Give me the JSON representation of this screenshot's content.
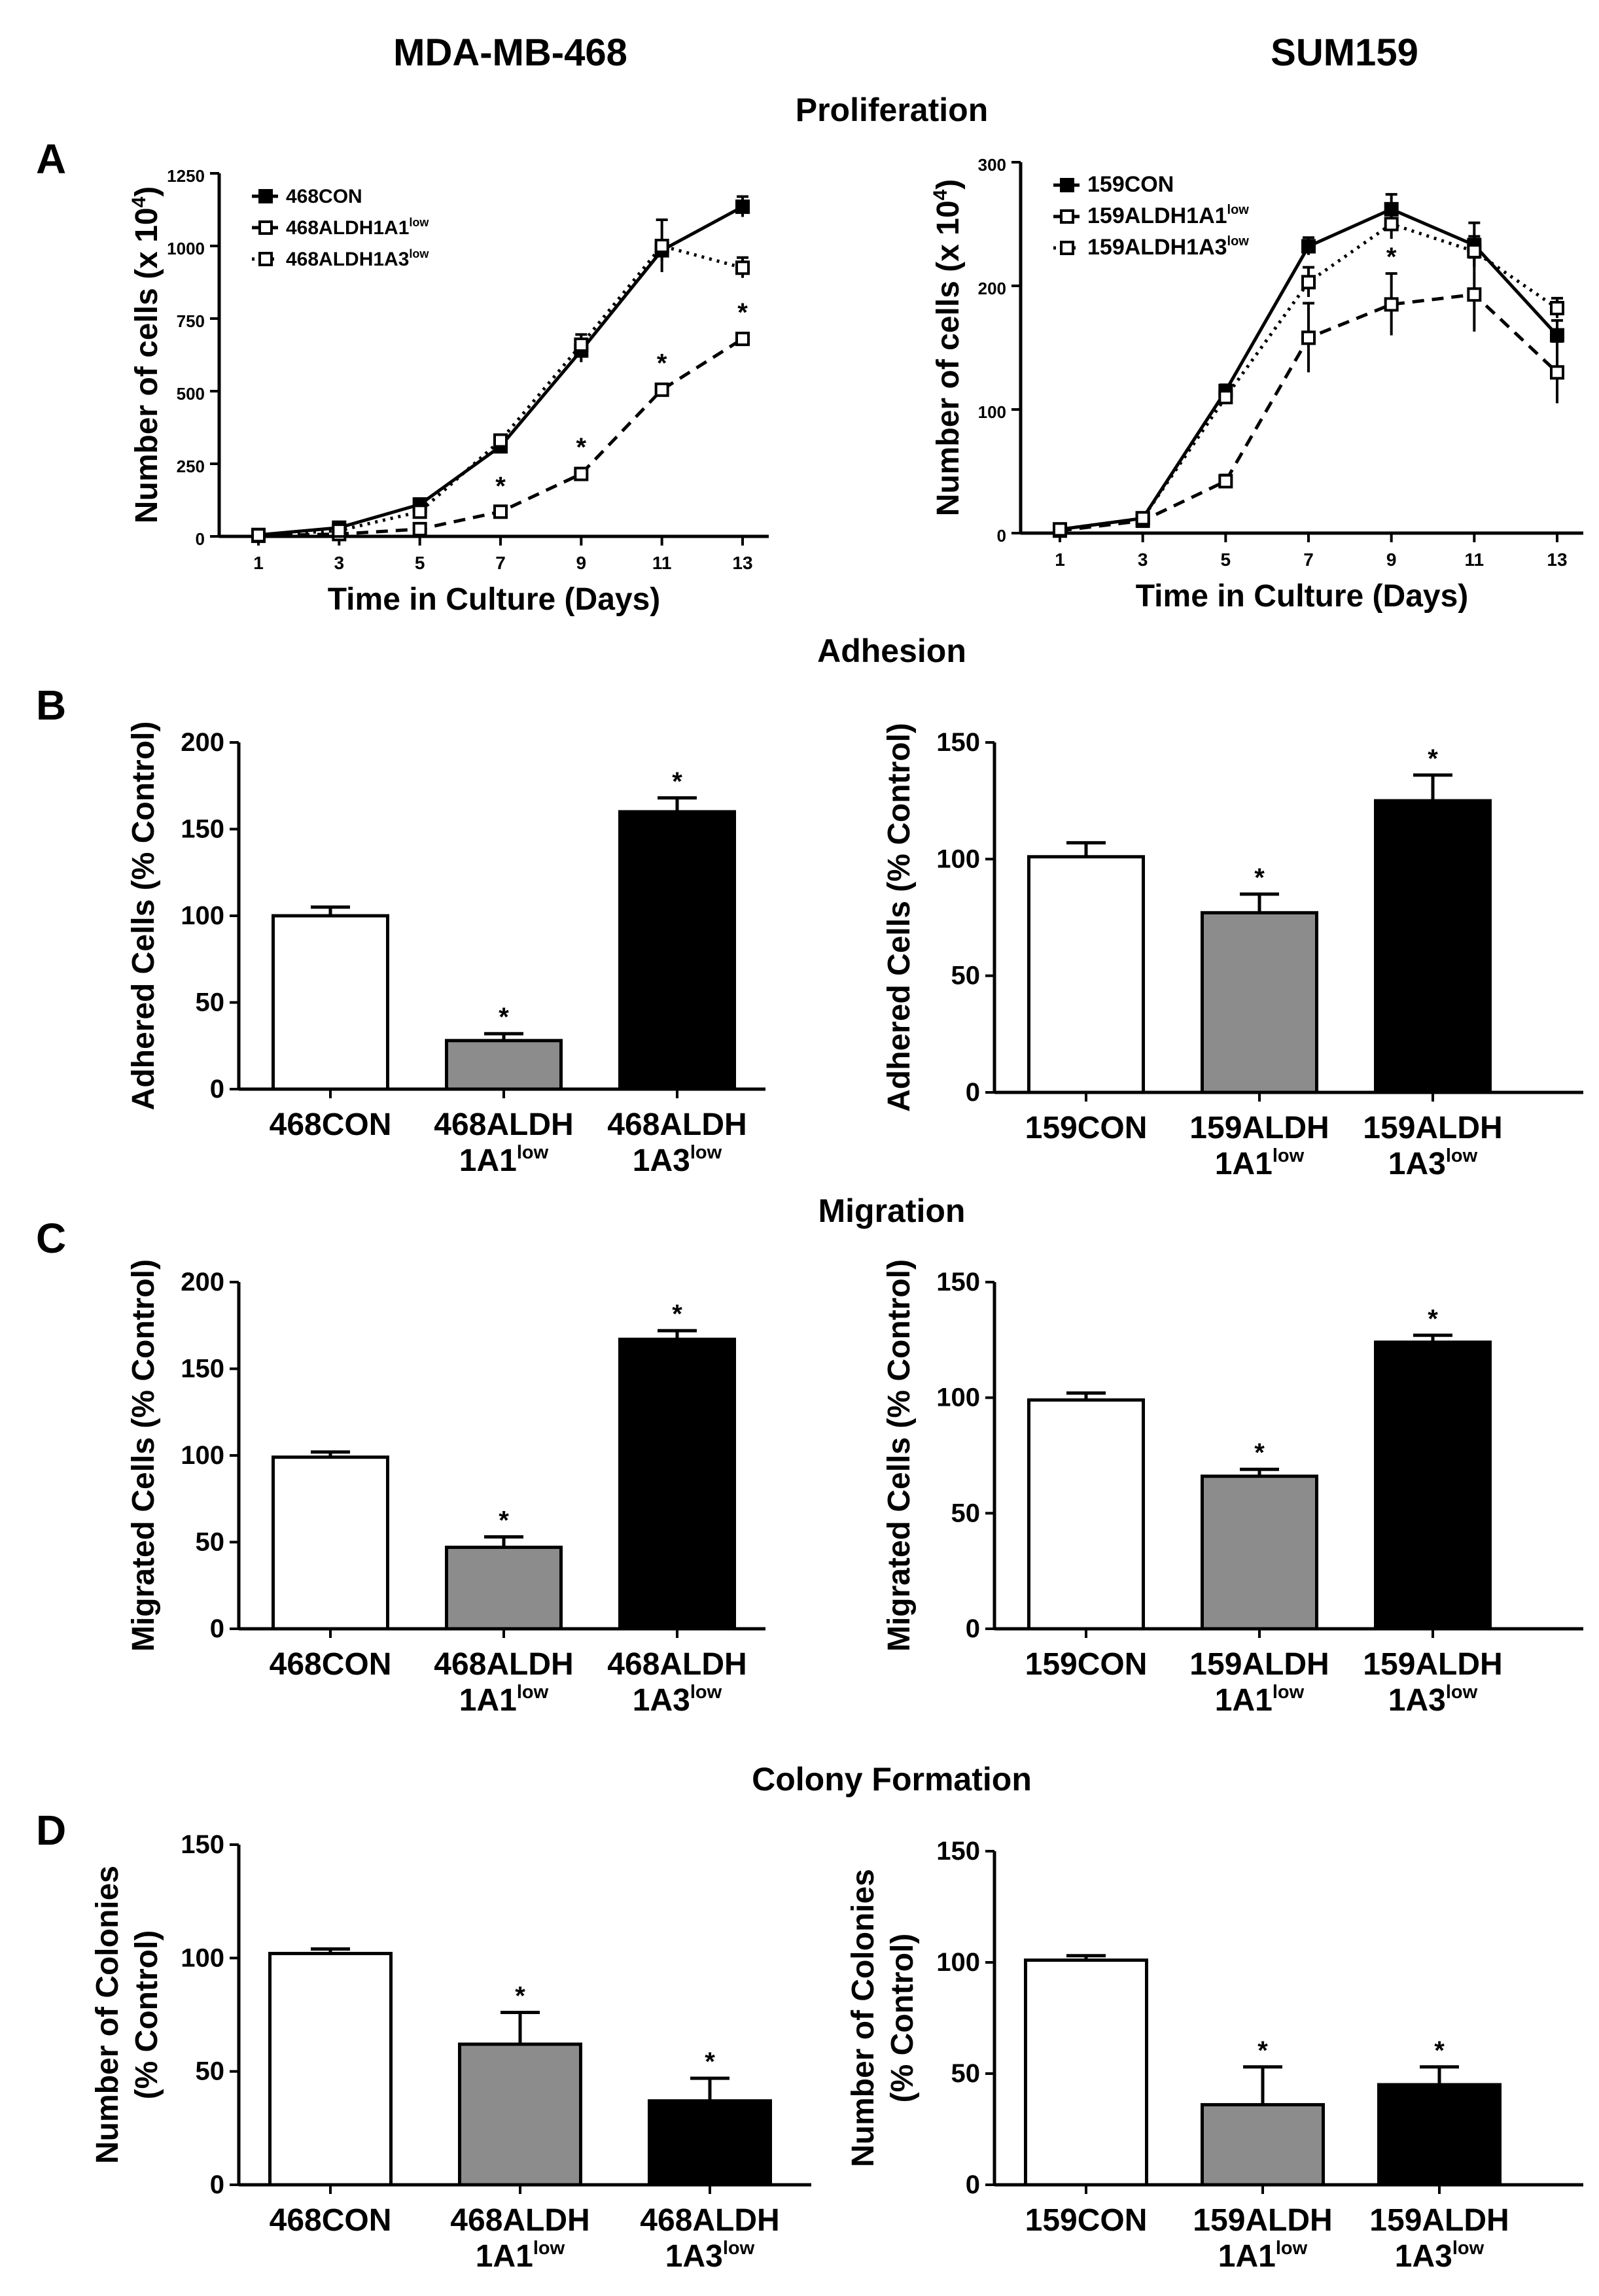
{
  "columns": {
    "left": "MDA-MB-468",
    "right": "SUM159"
  },
  "sections": {
    "proliferation": "Proliferation",
    "adhesion": "Adhesion",
    "migration": "Migration",
    "colony": "Colony Formation"
  },
  "panel_letters": {
    "a": "A",
    "b": "B",
    "c": "C",
    "d": "D"
  },
  "sig_marker": "*",
  "sup_low": "low",
  "colors": {
    "ink": "#000000",
    "grey_bar": "#8c8c8c",
    "black_bar": "#000000",
    "white_bar": "#ffffff"
  },
  "chart_data": [
    {
      "id": "prolif-468",
      "type": "line",
      "xlabel": "Time in Culture (Days)",
      "ylabel_main": "Number of cells (x 10",
      "ylabel_sup": "4",
      "ylabel_end": ")",
      "x": [
        1,
        3,
        5,
        7,
        9,
        11,
        13
      ],
      "xticks": [
        "1",
        "3",
        "5",
        "7",
        "9",
        "11",
        "13"
      ],
      "ylim": [
        0,
        1250
      ],
      "yticks": [
        "0",
        "250",
        "500",
        "750",
        "1000",
        "1250"
      ],
      "ytick_values": [
        0,
        250,
        500,
        750,
        1000,
        1250
      ],
      "series": [
        {
          "name": "468CON",
          "legend_main": "468CON",
          "legend_sup": "",
          "values": [
            5,
            30,
            110,
            310,
            640,
            985,
            1135
          ],
          "errors": [
            3,
            5,
            8,
            20,
            40,
            35,
            35
          ],
          "line": "solid",
          "marker": "filled"
        },
        {
          "name": "468ALDH1A1low",
          "legend_main": "468ALDH1A1",
          "legend_sup": "low",
          "values": [
            2,
            8,
            25,
            85,
            215,
            505,
            680
          ],
          "errors": [
            2,
            3,
            5,
            8,
            12,
            12,
            12
          ],
          "line": "dashed",
          "marker": "open"
        },
        {
          "name": "468ALDH1A3low",
          "legend_main": "468ALDH1A3",
          "legend_sup": "low",
          "values": [
            4,
            20,
            85,
            330,
            660,
            1000,
            925
          ],
          "errors": [
            3,
            5,
            8,
            20,
            35,
            90,
            35
          ],
          "line": "dotted",
          "marker": "open"
        }
      ],
      "sig_x": [
        7,
        9,
        11,
        13
      ]
    },
    {
      "id": "prolif-159",
      "type": "line",
      "xlabel": "Time in Culture (Days)",
      "ylabel_main": "Number of cells (x 10",
      "ylabel_sup": "4",
      "ylabel_end": ")",
      "x": [
        1,
        3,
        5,
        7,
        9,
        11,
        13
      ],
      "xticks": [
        "1",
        "3",
        "5",
        "7",
        "9",
        "11",
        "13"
      ],
      "ylim": [
        0,
        300
      ],
      "yticks": [
        "0",
        "100",
        "200",
        "300"
      ],
      "ytick_values": [
        0,
        100,
        200,
        300
      ],
      "series": [
        {
          "name": "159CON",
          "legend_main": "159CON",
          "legend_sup": "",
          "values": [
            3,
            12,
            115,
            232,
            262,
            233,
            160
          ],
          "errors": [
            2,
            2,
            5,
            7,
            12,
            18,
            12
          ],
          "line": "solid",
          "marker": "filled"
        },
        {
          "name": "159ALDH1A1low",
          "legend_main": "159ALDH1A1",
          "legend_sup": "low",
          "values": [
            2,
            10,
            42,
            158,
            185,
            193,
            130
          ],
          "errors": [
            2,
            2,
            5,
            28,
            25,
            30,
            25
          ],
          "line": "dashed",
          "marker": "open"
        },
        {
          "name": "159ALDH1A3low",
          "legend_main": "159ALDH1A3",
          "legend_sup": "low",
          "values": [
            3,
            12,
            110,
            203,
            250,
            228,
            182
          ],
          "errors": [
            2,
            2,
            5,
            12,
            12,
            12,
            8
          ],
          "line": "dotted",
          "marker": "open"
        }
      ],
      "sig_x": [
        9
      ]
    },
    {
      "id": "adhesion-468",
      "type": "bar",
      "ylabel": "Adhered Cells (% Control)",
      "ylim": [
        0,
        200
      ],
      "yticks": [
        "0",
        "50",
        "100",
        "150",
        "200"
      ],
      "ytick_values": [
        0,
        50,
        100,
        150,
        200
      ],
      "categories": [
        {
          "line1": "468CON",
          "line2": "",
          "sup": ""
        },
        {
          "line1": "468ALDH",
          "line2": "1A1",
          "sup": "low"
        },
        {
          "line1": "468ALDH",
          "line2": "1A3",
          "sup": "low"
        }
      ],
      "values": [
        100,
        28,
        160
      ],
      "errors": [
        5,
        4,
        8
      ],
      "sig": [
        false,
        true,
        true
      ],
      "fills": [
        "white",
        "grey",
        "black"
      ]
    },
    {
      "id": "adhesion-159",
      "type": "bar",
      "ylabel": "Adhered Cells (% Control)",
      "ylim": [
        0,
        150
      ],
      "yticks": [
        "0",
        "50",
        "100",
        "150"
      ],
      "ytick_values": [
        0,
        50,
        100,
        150
      ],
      "categories": [
        {
          "line1": "159CON",
          "line2": "",
          "sup": ""
        },
        {
          "line1": "159ALDH",
          "line2": "1A1",
          "sup": "low"
        },
        {
          "line1": "159ALDH",
          "line2": "1A3",
          "sup": "low"
        }
      ],
      "values": [
        101,
        77,
        125
      ],
      "errors": [
        6,
        8,
        11
      ],
      "sig": [
        false,
        true,
        true
      ],
      "fills": [
        "white",
        "grey",
        "black"
      ]
    },
    {
      "id": "migration-468",
      "type": "bar",
      "ylabel": "Migrated Cells (% Control)",
      "ylim": [
        0,
        200
      ],
      "yticks": [
        "0",
        "50",
        "100",
        "150",
        "200"
      ],
      "ytick_values": [
        0,
        50,
        100,
        150,
        200
      ],
      "categories": [
        {
          "line1": "468CON",
          "line2": "",
          "sup": ""
        },
        {
          "line1": "468ALDH",
          "line2": "1A1",
          "sup": "low"
        },
        {
          "line1": "468ALDH",
          "line2": "1A3",
          "sup": "low"
        }
      ],
      "values": [
        99,
        47,
        167
      ],
      "errors": [
        3,
        6,
        5
      ],
      "sig": [
        false,
        true,
        true
      ],
      "fills": [
        "white",
        "grey",
        "black"
      ]
    },
    {
      "id": "migration-159",
      "type": "bar",
      "ylabel": "Migrated Cells (% Control)",
      "ylim": [
        0,
        150
      ],
      "yticks": [
        "0",
        "50",
        "100",
        "150"
      ],
      "ytick_values": [
        0,
        50,
        100,
        150
      ],
      "categories": [
        {
          "line1": "159CON",
          "line2": "",
          "sup": ""
        },
        {
          "line1": "159ALDH",
          "line2": "1A1",
          "sup": "low"
        },
        {
          "line1": "159ALDH",
          "line2": "1A3",
          "sup": "low"
        }
      ],
      "values": [
        99,
        66,
        124
      ],
      "errors": [
        3,
        3,
        3
      ],
      "sig": [
        false,
        true,
        true
      ],
      "fills": [
        "white",
        "grey",
        "black"
      ]
    },
    {
      "id": "colony-468",
      "type": "bar",
      "ylabel_line1": "Number of Colonies",
      "ylabel_line2": "(% Control)",
      "ylim": [
        0,
        150
      ],
      "yticks": [
        "0",
        "50",
        "100",
        "150"
      ],
      "ytick_values": [
        0,
        50,
        100,
        150
      ],
      "categories": [
        {
          "line1": "468CON",
          "line2": "",
          "sup": ""
        },
        {
          "line1": "468ALDH",
          "line2": "1A1",
          "sup": "low"
        },
        {
          "line1": "468ALDH",
          "line2": "1A3",
          "sup": "low"
        }
      ],
      "values": [
        102,
        62,
        37
      ],
      "errors": [
        2,
        14,
        10
      ],
      "sig": [
        false,
        true,
        true
      ],
      "fills": [
        "white",
        "grey",
        "black"
      ]
    },
    {
      "id": "colony-159",
      "type": "bar",
      "ylabel_line1": "Number of Colonies",
      "ylabel_line2": "(% Control)",
      "ylim": [
        0,
        150
      ],
      "yticks": [
        "0",
        "50",
        "100",
        "150"
      ],
      "ytick_values": [
        0,
        50,
        100,
        150
      ],
      "categories": [
        {
          "line1": "159CON",
          "line2": "",
          "sup": ""
        },
        {
          "line1": "159ALDH",
          "line2": "1A1",
          "sup": "low"
        },
        {
          "line1": "159ALDH",
          "line2": "1A3",
          "sup": "low"
        }
      ],
      "values": [
        101,
        36,
        45
      ],
      "errors": [
        2,
        17,
        8
      ],
      "sig": [
        false,
        true,
        true
      ],
      "fills": [
        "white",
        "grey",
        "black"
      ]
    }
  ]
}
